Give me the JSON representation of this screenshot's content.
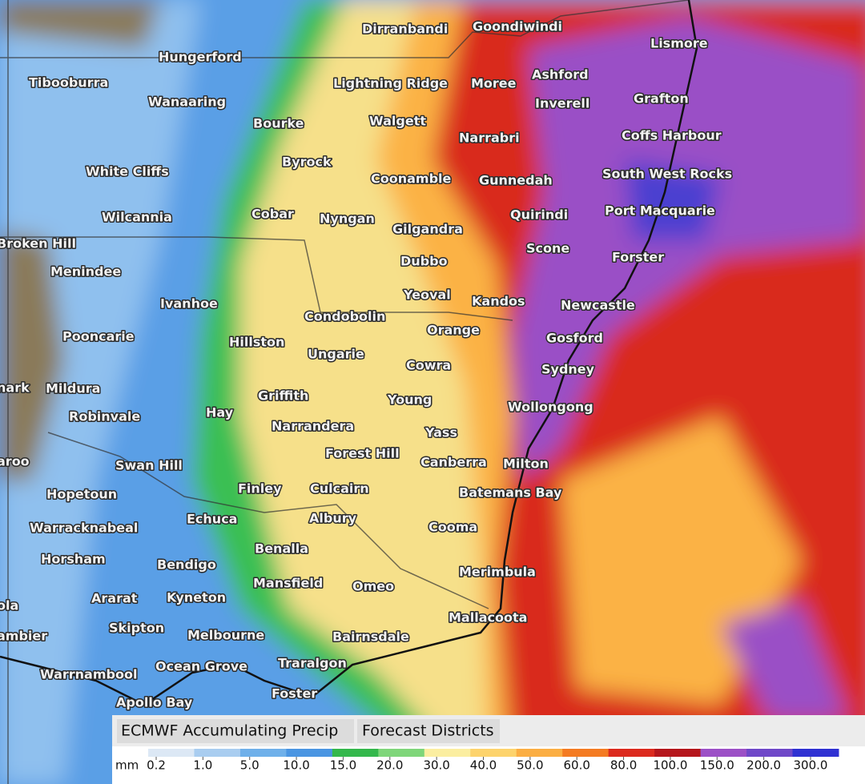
{
  "map": {
    "places": [
      "Dirranbandi",
      "Goondiwindi",
      "Hungerford",
      "Tibooburra",
      "Wanaaring",
      "Lightning Ridge",
      "Moree",
      "Ashford",
      "Lismore",
      "Inverell",
      "Grafton",
      "Bourke",
      "Walgett",
      "Narrabri",
      "Coffs Harbour",
      "Byrock",
      "White Cliffs",
      "Coonamble",
      "Gunnedah",
      "South West Rocks",
      "Wilcannia",
      "Cobar",
      "Nyngan",
      "Quirindi",
      "Port Macquarie",
      "Gilgandra",
      "Broken Hill",
      "Scone",
      "Forster",
      "Menindee",
      "Dubbo",
      "Yeoval",
      "Kandos",
      "Newcastle",
      "Ivanhoe",
      "Condobolin",
      "Orange",
      "Gosford",
      "Pooncarie",
      "Hillston",
      "Ungarie",
      "Cowra",
      "Sydney",
      "Mildura",
      "Griffith",
      "Young",
      "Hay",
      "Wollongong",
      "Robinvale",
      "Narrandera",
      "Yass",
      "Forest Hill",
      "Canberra",
      "Milton",
      "Swan Hill",
      "Hopetoun",
      "Finley",
      "Culcairn",
      "Batemans Bay",
      "Echuca",
      "Albury",
      "Warracknabeal",
      "Cooma",
      "Benalla",
      "Horsham",
      "Bendigo",
      "Merimbula",
      "Mansfield",
      "Omeo",
      "Ararat",
      "Kyneton",
      "Mallacoota",
      "Skipton",
      "Melbourne",
      "Bairnsdale",
      "Ocean Grove",
      "Traralgon",
      "Warrnambool",
      "Foster",
      "Apollo Bay",
      "nark",
      "aroo",
      "ola",
      "ambier"
    ]
  },
  "legend": {
    "tabs": [
      "ECMWF Accumulating Precip",
      "Forecast Districts"
    ],
    "unit": "mm",
    "levels": [
      0.2,
      {
        "value": 1,
        "label": "1.0"
      },
      {
        "value": 5,
        "label": "5.0"
      },
      {
        "value": 10,
        "label": "10.0"
      },
      {
        "value": 15,
        "label": "15.0"
      },
      {
        "value": 20,
        "label": "20.0"
      },
      {
        "value": 30,
        "label": "30.0"
      },
      {
        "value": 40,
        "label": "40.0"
      },
      {
        "value": 50,
        "label": "50.0"
      },
      {
        "value": 60,
        "label": "60.0"
      },
      {
        "value": 80,
        "label": "80.0"
      },
      {
        "value": 100,
        "label": "100.0"
      },
      {
        "value": 150,
        "label": "150.0"
      },
      {
        "value": 200,
        "label": "200.0"
      },
      {
        "value": 300,
        "label": "300.0"
      }
    ],
    "colors": [
      "#dce8f5",
      "#a9cdf0",
      "#6fb0ea",
      "#4a95e2",
      "#34b84c",
      "#7fd67a",
      "#fbeea0",
      "#fdd36c",
      "#fbae43",
      "#f47b22",
      "#dc2a1e",
      "#b5161c",
      "#9c50c6",
      "#6f48c8",
      "#2f31d2"
    ]
  }
}
